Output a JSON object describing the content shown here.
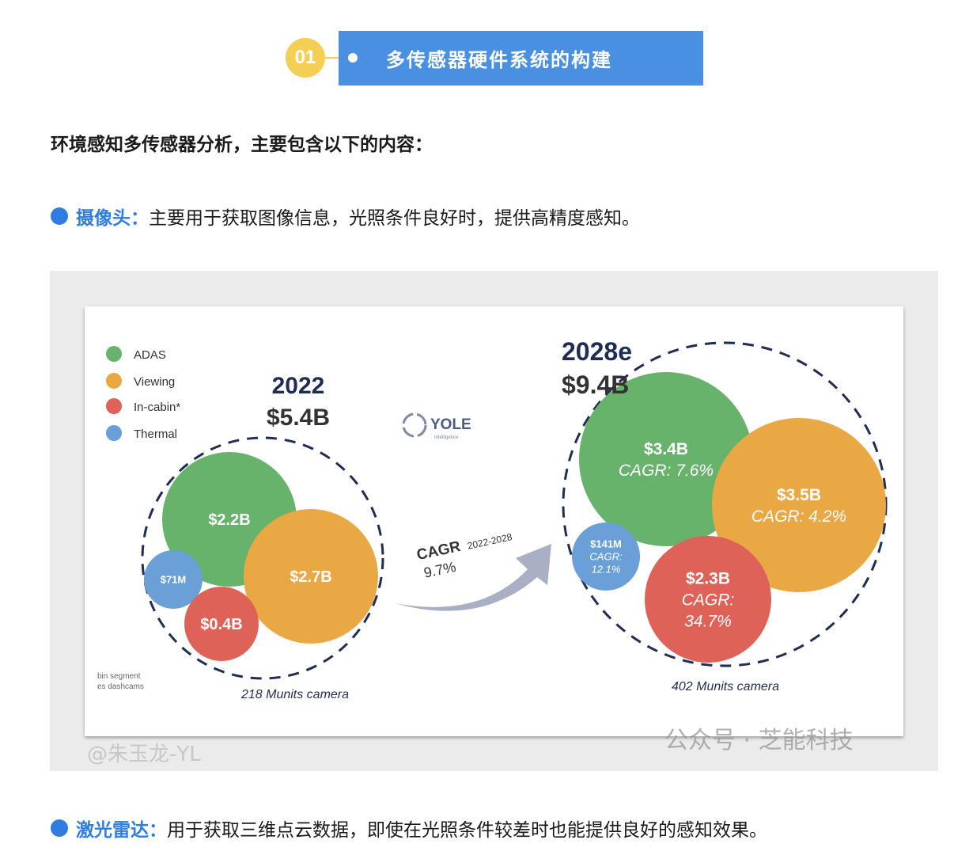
{
  "header": {
    "number": "01",
    "title": "多传感器硬件系统的构建",
    "colors": {
      "badge": "#f5cf55",
      "title_bg": "#4a90e2"
    }
  },
  "intro": "环境感知多传感器分析，主要包含以下的内容：",
  "bullets": [
    {
      "label": "摄像头：",
      "text": "主要用于获取图像信息，光照条件良好时，提供高精度感知。"
    },
    {
      "label": "激光雷达：",
      "text": "用于获取三维点云数据，即使在光照条件较差时也能提供良好的感知效果。"
    }
  ],
  "watermarks": {
    "image": "公众号 · 芝能科技",
    "page": "@朱玉龙-YL"
  },
  "chart_data": {
    "type": "bubble",
    "legend": [
      "ADAS",
      "Viewing",
      "In-cabin*",
      "Thermal"
    ],
    "colors": {
      "ADAS": "#67b36b",
      "Viewing": "#eaa845",
      "In-cabin*": "#df6258",
      "Thermal": "#6a9fd8"
    },
    "logo": "YOLE Intelligence",
    "footnote": [
      "bin segment",
      "es dashcams"
    ],
    "arrow": {
      "label": "CAGR",
      "period": "2022-2028",
      "value": "9.7%"
    },
    "groups": [
      {
        "year": "2022",
        "total": "$5.4B",
        "units": "218 Munits camera",
        "bubbles": [
          {
            "segment": "ADAS",
            "label": "$2.2B",
            "value_musd": 2200
          },
          {
            "segment": "Viewing",
            "label": "$2.7B",
            "value_musd": 2700
          },
          {
            "segment": "Thermal",
            "label": "$71M",
            "value_musd": 71
          },
          {
            "segment": "In-cabin*",
            "label": "$0.4B",
            "value_musd": 400
          }
        ]
      },
      {
        "year": "2028e",
        "total": "$9.4B",
        "units": "402 Munits camera",
        "bubbles": [
          {
            "segment": "ADAS",
            "label": "$3.4B",
            "cagr": "CAGR: 7.6%",
            "value_musd": 3400
          },
          {
            "segment": "Viewing",
            "label": "$3.5B",
            "cagr": "CAGR: 4.2%",
            "value_musd": 3500
          },
          {
            "segment": "Thermal",
            "label": "$141M",
            "cagr": "CAGR: 12.1%",
            "value_musd": 141
          },
          {
            "segment": "In-cabin*",
            "label": "$2.3B",
            "cagr": "CAGR: 34.7%",
            "value_musd": 2300
          }
        ]
      }
    ]
  }
}
